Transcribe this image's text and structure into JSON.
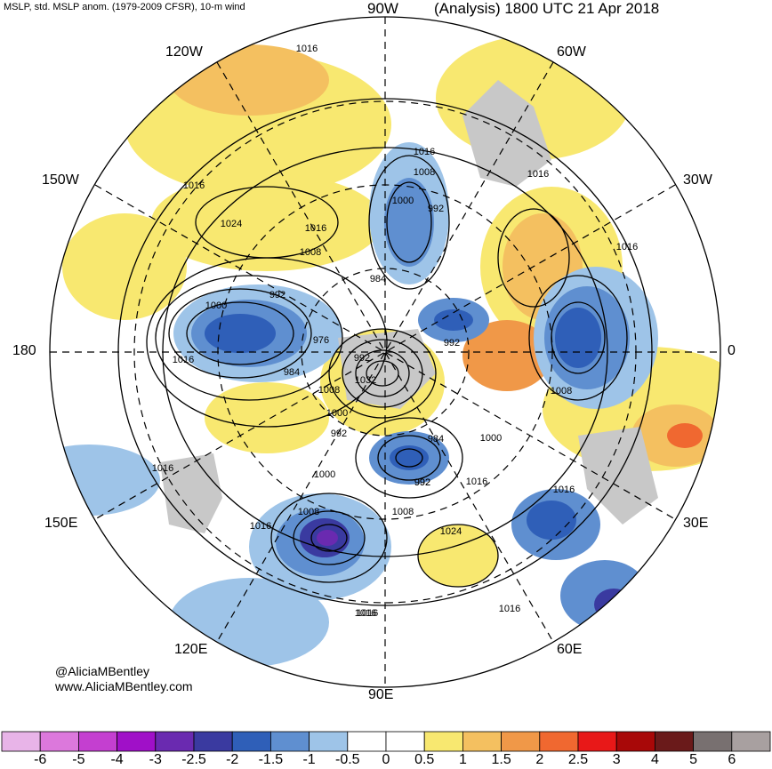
{
  "header": {
    "left": "MSLP, std. MSLP anom. (1979-2009 CFSR), 10-m wind",
    "center": "90W",
    "right": "(Analysis) 1800 UTC 21 Apr 2018"
  },
  "lon_labels": {
    "w120": "120W",
    "w60": "60W",
    "w150": "150W",
    "w30": "30W",
    "w180": "180",
    "e0": "0",
    "e150": "150E",
    "e30": "30E",
    "e120": "120E",
    "e60": "60E",
    "e90": "90E"
  },
  "credit": {
    "twitter": "@AliciaMBentley",
    "website": "www.AliciaMBentley.com"
  },
  "isobar_labels": [
    "1016",
    "1016",
    "1016",
    "1024",
    "1016",
    "1008",
    "1016",
    "1008",
    "1000",
    "992",
    "992",
    "984",
    "1000",
    "976",
    "992",
    "984",
    "992",
    "1016",
    "1008",
    "1032",
    "992",
    "1000",
    "1008",
    "992",
    "984",
    "1000",
    "1016",
    "992",
    "1016",
    "1008",
    "1016",
    "1024",
    "1016",
    "1016",
    "1016",
    "1016",
    "1000",
    "1008",
    "1016"
  ],
  "colorbar": {
    "ticks": [
      "-6",
      "-5",
      "-4",
      "-3",
      "-2.5",
      "-2",
      "-1.5",
      "-1",
      "-0.5",
      "0",
      "0.5",
      "1",
      "1.5",
      "2",
      "2.5",
      "3",
      "4",
      "5",
      "6"
    ],
    "colors": [
      "#e8b4e8",
      "#dc78dc",
      "#c43fd0",
      "#a010c8",
      "#6a2ab0",
      "#3a3aa0",
      "#2f5fb8",
      "#5f8fd0",
      "#9ec4e8",
      "#ffffff",
      "#ffffff",
      "#f8e870",
      "#f4c060",
      "#f09848",
      "#f06830",
      "#e81818",
      "#a80808",
      "#6a1a1a",
      "#787070",
      "#a8a0a0"
    ]
  },
  "theme": {
    "land": "#c8c8c8",
    "ring": "#000000"
  }
}
